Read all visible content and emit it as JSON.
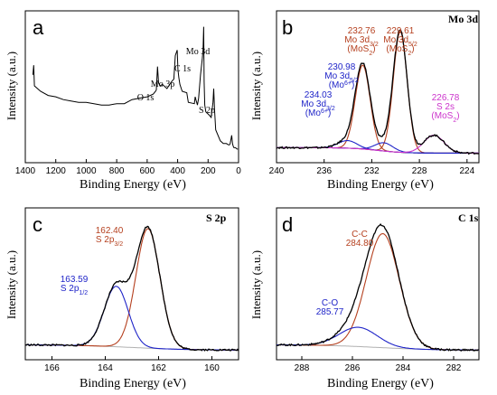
{
  "chart_data": [
    {
      "type": "line",
      "panel_label": "a",
      "xlabel": "Binding Energy (eV)",
      "ylabel": "Intensity (a.u.)",
      "xlim": [
        1400,
        0
      ],
      "xreversed": true,
      "xticks": [
        1400,
        1200,
        1000,
        800,
        600,
        400,
        200,
        0
      ],
      "ylim": [
        0,
        1
      ],
      "grid": false,
      "series": [
        {
          "name": "",
          "color": "#000000",
          "x": [
            1350,
            1345,
            1340,
            1320,
            1300,
            1250,
            1200,
            1150,
            1100,
            1050,
            1000,
            950,
            900,
            850,
            800,
            750,
            700,
            650,
            600,
            560,
            545,
            540,
            532,
            525,
            515,
            500,
            470,
            440,
            425,
            415,
            403,
            398,
            392,
            385,
            370,
            340,
            330,
            290,
            285,
            280,
            270,
            262,
            250,
            238,
            233,
            229,
            226,
            222,
            215,
            205,
            195,
            180,
            168,
            163,
            158,
            150,
            120,
            100,
            80,
            65,
            60,
            55,
            50,
            45,
            40,
            35,
            30,
            20,
            10,
            5
          ],
          "y": [
            0.6,
            0.67,
            0.52,
            0.5,
            0.48,
            0.45,
            0.44,
            0.42,
            0.41,
            0.4,
            0.4,
            0.39,
            0.38,
            0.38,
            0.39,
            0.39,
            0.42,
            0.43,
            0.44,
            0.46,
            0.48,
            0.49,
            0.66,
            0.54,
            0.52,
            0.53,
            0.5,
            0.55,
            0.57,
            0.74,
            0.78,
            0.64,
            0.58,
            0.53,
            0.48,
            0.47,
            0.4,
            0.39,
            0.44,
            0.42,
            0.38,
            0.43,
            0.6,
            0.72,
            0.78,
            0.95,
            0.55,
            0.38,
            0.33,
            0.32,
            0.31,
            0.29,
            0.4,
            0.5,
            0.35,
            0.2,
            0.12,
            0.1,
            0.1,
            0.09,
            0.09,
            0.1,
            0.13,
            0.16,
            0.1,
            0.08,
            0.07,
            0.07,
            0.06,
            0.06
          ]
        }
      ],
      "annotations": [
        {
          "text": "Mo 3d",
          "x": 232,
          "y": 0.95
        },
        {
          "text": "C 1s",
          "x": 285,
          "y": 0.82
        },
        {
          "text": "Mo 3p",
          "x": 400,
          "y": 0.73
        },
        {
          "text": "O 1s",
          "x": 532,
          "y": 0.64
        },
        {
          "text": "S 2p",
          "x": 163,
          "y": 0.47
        }
      ]
    },
    {
      "type": "line",
      "panel_label": "b",
      "panel_title": "Mo 3d",
      "xlabel": "Binding Energy (eV)",
      "ylabel": "Intensity (a.u.)",
      "xlim": [
        240,
        223
      ],
      "xreversed": true,
      "xticks": [
        240,
        236,
        232,
        228,
        224
      ],
      "ylim": [
        0,
        1
      ],
      "grid": false,
      "peaks": [
        {
          "label_lines": [
            "232.76",
            "Mo 3d3/2",
            "(MoS2)"
          ],
          "center": 232.76,
          "color": "#b5401f",
          "amplitude": 0.61,
          "width": 0.62
        },
        {
          "label_lines": [
            "229.61",
            "Mo 3d5/2",
            "(MoS2)"
          ],
          "center": 229.61,
          "color": "#b5401f",
          "amplitude": 0.88,
          "width": 0.58
        },
        {
          "label_lines": [
            "230.98",
            "Mo 3d5/2",
            "(Mo6+)"
          ],
          "center": 230.98,
          "color": "#1f24c8",
          "amplitude": 0.06,
          "width": 0.75
        },
        {
          "label_lines": [
            "234.03",
            "Mo 3d3/2",
            "(Mo6+)"
          ],
          "center": 234.03,
          "color": "#1f24c8",
          "amplitude": 0.055,
          "width": 0.8
        },
        {
          "label_lines": [
            "226.78",
            "S 2s",
            "(MoS2)"
          ],
          "center": 226.78,
          "color": "#cc33cc",
          "amplitude": 0.13,
          "width": 0.85
        }
      ],
      "background_color": "#b0b0b0",
      "envelope_color": "#000000"
    },
    {
      "type": "line",
      "panel_label": "c",
      "panel_title": "S 2p",
      "xlabel": "Binding Energy (eV)",
      "ylabel": "Intensity (a.u.)",
      "xlim": [
        167,
        159
      ],
      "xreversed": true,
      "xticks": [
        166,
        164,
        162,
        160
      ],
      "ylim": [
        0,
        1
      ],
      "grid": false,
      "peaks": [
        {
          "label_lines": [
            "162.40",
            "S 2p3/2"
          ],
          "center": 162.4,
          "color": "#b5401f",
          "amplitude": 0.87,
          "width": 0.45
        },
        {
          "label_lines": [
            "163.59",
            "S 2p1/2"
          ],
          "center": 163.59,
          "color": "#1f24c8",
          "amplitude": 0.44,
          "width": 0.45
        }
      ],
      "background_color": "#b0b0b0",
      "envelope_color": "#000000"
    },
    {
      "type": "line",
      "panel_label": "d",
      "panel_title": "C 1s",
      "xlabel": "Binding Energy (eV)",
      "ylabel": "Intensity (a.u.)",
      "xlim": [
        289,
        281
      ],
      "xreversed": true,
      "xticks": [
        288,
        286,
        284,
        282
      ],
      "ylim": [
        0,
        1
      ],
      "grid": false,
      "peaks": [
        {
          "label_lines": [
            "C-C",
            "284.80"
          ],
          "center": 284.8,
          "color": "#b5401f",
          "amplitude": 0.83,
          "width": 0.65
        },
        {
          "label_lines": [
            "C-O",
            "285.77"
          ],
          "center": 285.77,
          "color": "#1f24c8",
          "amplitude": 0.14,
          "width": 0.75
        }
      ],
      "background_color": "#b0b0b0",
      "envelope_color": "#000000"
    }
  ]
}
